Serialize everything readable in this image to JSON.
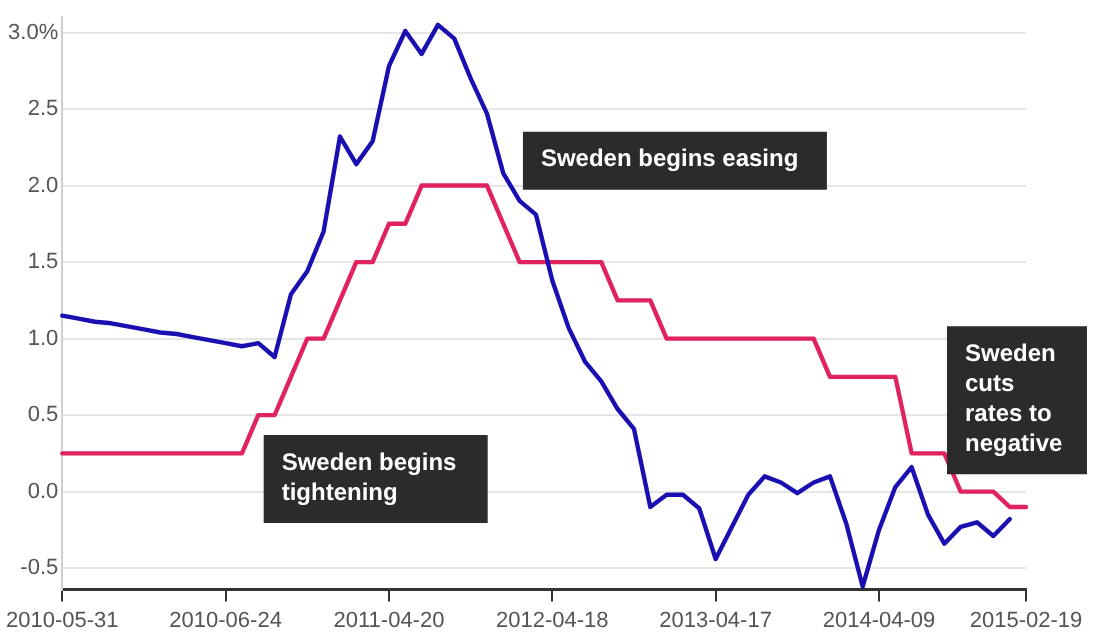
{
  "chart_data": {
    "type": "line",
    "categories": [
      "2010-05-31",
      null,
      null,
      null,
      null,
      null,
      null,
      null,
      null,
      null,
      "2010-06-24",
      null,
      null,
      null,
      null,
      null,
      null,
      null,
      null,
      null,
      "2011-04-20",
      null,
      null,
      null,
      null,
      null,
      null,
      null,
      null,
      null,
      "2012-04-18",
      null,
      null,
      null,
      null,
      null,
      null,
      null,
      null,
      null,
      "2013-04-17",
      null,
      null,
      null,
      null,
      null,
      null,
      null,
      null,
      null,
      "2014-04-09",
      null,
      null,
      null,
      null,
      null,
      null,
      null,
      null,
      "2015-02-19"
    ],
    "ylim": [
      -0.64,
      3.1
    ],
    "yticks": [
      {
        "value": -0.5,
        "label": "-0.5"
      },
      {
        "value": 0,
        "label": "0.0"
      },
      {
        "value": 0.5,
        "label": "0.5"
      },
      {
        "value": 1,
        "label": "1.0"
      },
      {
        "value": 1.5,
        "label": "1.5"
      },
      {
        "value": 2,
        "label": "2.0"
      },
      {
        "value": 2.5,
        "label": "2.5"
      },
      {
        "value": 3,
        "label": "3.0%"
      }
    ],
    "grid": "y",
    "legend": false,
    "series": [
      {
        "color": "#1a0fb0",
        "values": [
          1.15,
          1.13,
          1.11,
          1.1,
          1.08,
          1.06,
          1.04,
          1.03,
          1.01,
          0.99,
          0.97,
          0.95,
          0.97,
          0.88,
          1.29,
          1.44,
          1.7,
          2.32,
          2.14,
          2.29,
          2.78,
          3.01,
          2.86,
          3.05,
          2.96,
          2.7,
          2.47,
          2.08,
          1.9,
          1.81,
          1.38,
          1.07,
          0.85,
          0.72,
          0.54,
          0.41,
          -0.1,
          -0.02,
          -0.02,
          -0.11,
          -0.44,
          -0.23,
          -0.02,
          0.1,
          0.06,
          -0.01,
          0.06,
          0.1,
          -0.21,
          -0.62,
          -0.25,
          0.03,
          0.16,
          -0.15,
          -0.34,
          -0.23,
          -0.2,
          -0.29,
          -0.18,
          null
        ]
      },
      {
        "color": "#e0225f",
        "values": [
          0.25,
          0.25,
          0.25,
          0.25,
          0.25,
          0.25,
          0.25,
          0.25,
          0.25,
          0.25,
          0.25,
          0.25,
          0.5,
          0.5,
          0.75,
          1,
          1,
          1.25,
          1.5,
          1.5,
          1.75,
          1.75,
          2,
          2,
          2,
          2,
          2,
          1.75,
          1.5,
          1.5,
          1.5,
          1.5,
          1.5,
          1.5,
          1.25,
          1.25,
          1.25,
          1,
          1,
          1,
          1,
          1,
          1,
          1,
          1,
          1,
          1,
          0.75,
          0.75,
          0.75,
          0.75,
          0.75,
          0.25,
          0.25,
          0.25,
          0,
          0,
          0,
          -0.1,
          -0.1
        ]
      }
    ],
    "annotations": [
      "Sweden begins tightening",
      "Sweden begins easing",
      "Sweden cuts rates to negative"
    ]
  }
}
